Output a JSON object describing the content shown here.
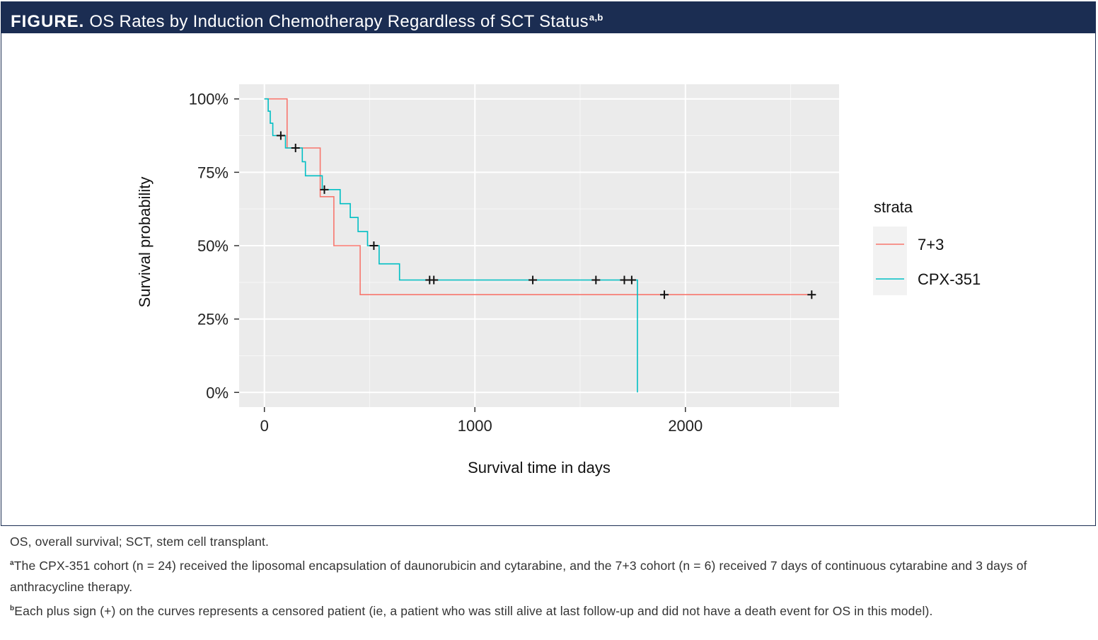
{
  "figure": {
    "label": "FIGURE.",
    "title": "OS Rates by Induction Chemotherapy Regardless of SCT Status",
    "title_superscript": "a,b"
  },
  "footnotes": {
    "abbreviations": "OS, overall survival; SCT, stem cell transplant.",
    "a_marker": "a",
    "a_text": "The CPX-351 cohort (n = 24) received the liposomal encapsulation of daunorubicin and cytarabine, and the 7+3 cohort (n = 6) received 7 days of continuous cytarabine and 3 days of anthracycline therapy.",
    "b_marker": "b",
    "b_text": "Each plus sign (+) on the curves represents a censored patient (ie, a patient who was still alive at last follow-up and did not have a death event for OS in this model)."
  },
  "chart_data": {
    "type": "line",
    "title": "",
    "xlabel": "Survival time in days",
    "ylabel": "Survival probability",
    "xlim": [
      -120,
      2730
    ],
    "ylim": [
      -0.05,
      1.05
    ],
    "x_ticks": [
      0,
      1000,
      2000
    ],
    "y_ticks": [
      0,
      0.25,
      0.5,
      0.75,
      1
    ],
    "y_tick_labels": [
      "0%",
      "25%",
      "50%",
      "75%",
      "100%"
    ],
    "grid": true,
    "legend": {
      "title": "strata",
      "position": "right"
    },
    "series": [
      {
        "name": "7+3",
        "color": "#F8766D",
        "step_x": [
          0,
          108,
          108,
          265,
          265,
          330,
          330,
          455,
          455,
          2600
        ],
        "step_y": [
          1,
          1,
          0.833,
          0.833,
          0.667,
          0.667,
          0.5,
          0.5,
          0.333,
          0.333
        ],
        "censored_x": [
          1900,
          2600
        ],
        "censored_y": [
          0.333,
          0.333
        ]
      },
      {
        "name": "CPX-351",
        "color": "#00BFC4",
        "step_x": [
          0,
          18,
          18,
          28,
          28,
          40,
          40,
          65,
          65,
          100,
          100,
          110,
          110,
          180,
          180,
          195,
          195,
          275,
          275,
          360,
          360,
          408,
          408,
          445,
          445,
          490,
          490,
          545,
          545,
          642,
          642,
          1772,
          1772
        ],
        "step_y": [
          1,
          1,
          0.958,
          0.958,
          0.917,
          0.917,
          0.875,
          0.875,
          0.875,
          0.875,
          0.833,
          0.833,
          0.833,
          0.833,
          0.786,
          0.786,
          0.738,
          0.738,
          0.691,
          0.691,
          0.643,
          0.643,
          0.596,
          0.596,
          0.548,
          0.548,
          0.5,
          0.5,
          0.438,
          0.438,
          0.383,
          0.383,
          0
        ],
        "censored_x": [
          78,
          148,
          285,
          520,
          785,
          805,
          1275,
          1575,
          1710,
          1745
        ],
        "censored_y": [
          0.875,
          0.833,
          0.691,
          0.5,
          0.383,
          0.383,
          0.383,
          0.383,
          0.383,
          0.383
        ]
      }
    ]
  }
}
